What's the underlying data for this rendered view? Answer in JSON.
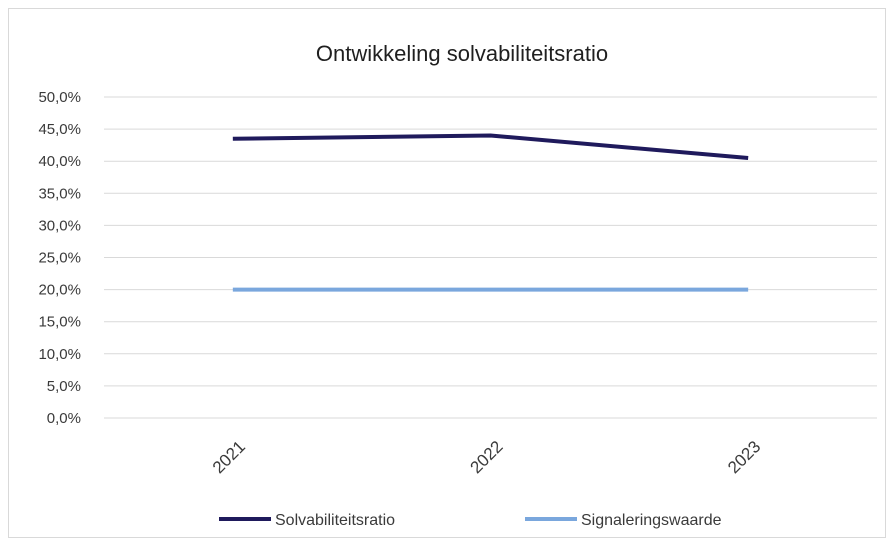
{
  "chart_data": {
    "type": "line",
    "title": "Ontwikkeling solvabiliteitsratio",
    "xlabel": "",
    "ylabel": "",
    "categories": [
      "2021",
      "2022",
      "2023"
    ],
    "ylim": [
      0,
      50
    ],
    "yticks": [
      "0,0%",
      "5,0%",
      "10,0%",
      "15,0%",
      "20,0%",
      "25,0%",
      "30,0%",
      "35,0%",
      "40,0%",
      "45,0%",
      "50,0%"
    ],
    "grid": true,
    "legend": "bottom",
    "series": [
      {
        "name": "Solvabiliteitsratio",
        "values": [
          43.5,
          44.0,
          40.5
        ],
        "color": "#1f1a5c"
      },
      {
        "name": "Signaleringswaarde",
        "values": [
          20.0,
          20.0,
          20.0
        ],
        "color": "#7aa7dd"
      }
    ]
  }
}
